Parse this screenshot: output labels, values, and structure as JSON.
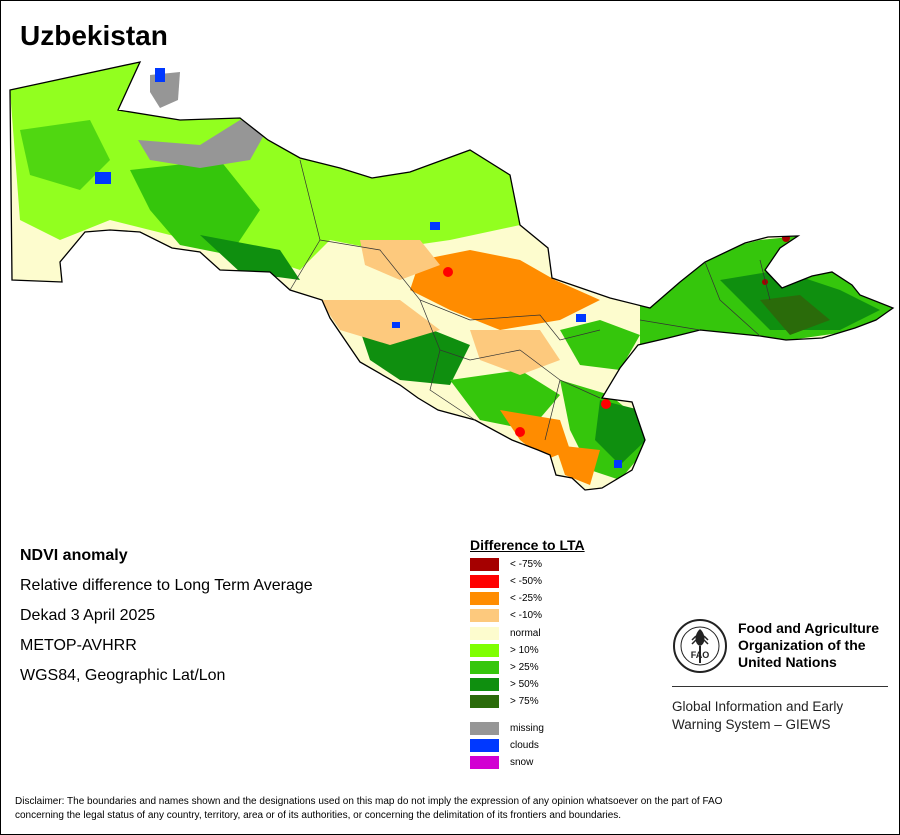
{
  "title": "Uzbekistan",
  "info": {
    "heading": "NDVI anomaly",
    "line1": "Relative difference to Long Term Average",
    "line2": "Dekad 3 April 2025",
    "line3": "METOP-AVHRR",
    "line4": "WGS84, Geographic Lat/Lon"
  },
  "legend": {
    "title": "Difference to LTA",
    "items": [
      {
        "label": "< -75%",
        "color": "#a50000"
      },
      {
        "label": "< -50%",
        "color": "#ff0000"
      },
      {
        "label": "< -25%",
        "color": "#ff8c00"
      },
      {
        "label": "< -10%",
        "color": "#fdc97d"
      },
      {
        "label": "normal",
        "color": "#fdfcce"
      },
      {
        "label": "> 10%",
        "color": "#7fff00"
      },
      {
        "label": "> 25%",
        "color": "#35c60c"
      },
      {
        "label": "> 50%",
        "color": "#0f8f0f"
      },
      {
        "label": "> 75%",
        "color": "#2a6b0a"
      },
      {
        "label": "missing",
        "color": "#969696"
      },
      {
        "label": "clouds",
        "color": "#0038ff"
      },
      {
        "label": "snow",
        "color": "#d200d2"
      }
    ]
  },
  "fao": {
    "logo_text": "FAO",
    "name_line1": "Food and Agriculture",
    "name_line2": "Organization of the",
    "name_line3": "United Nations",
    "giews_line1": "Global Information and Early",
    "giews_line2": "Warning System – GIEWS"
  },
  "disclaimer": {
    "line1": "Disclaimer: The boundaries and names shown and the designations used on this map do not imply the expression of any opinion whatsoever on the part of FAO",
    "line2": "concerning the legal status of any country, territory, area or of its authorities, or concerning the delimitation of its frontiers and boundaries."
  }
}
